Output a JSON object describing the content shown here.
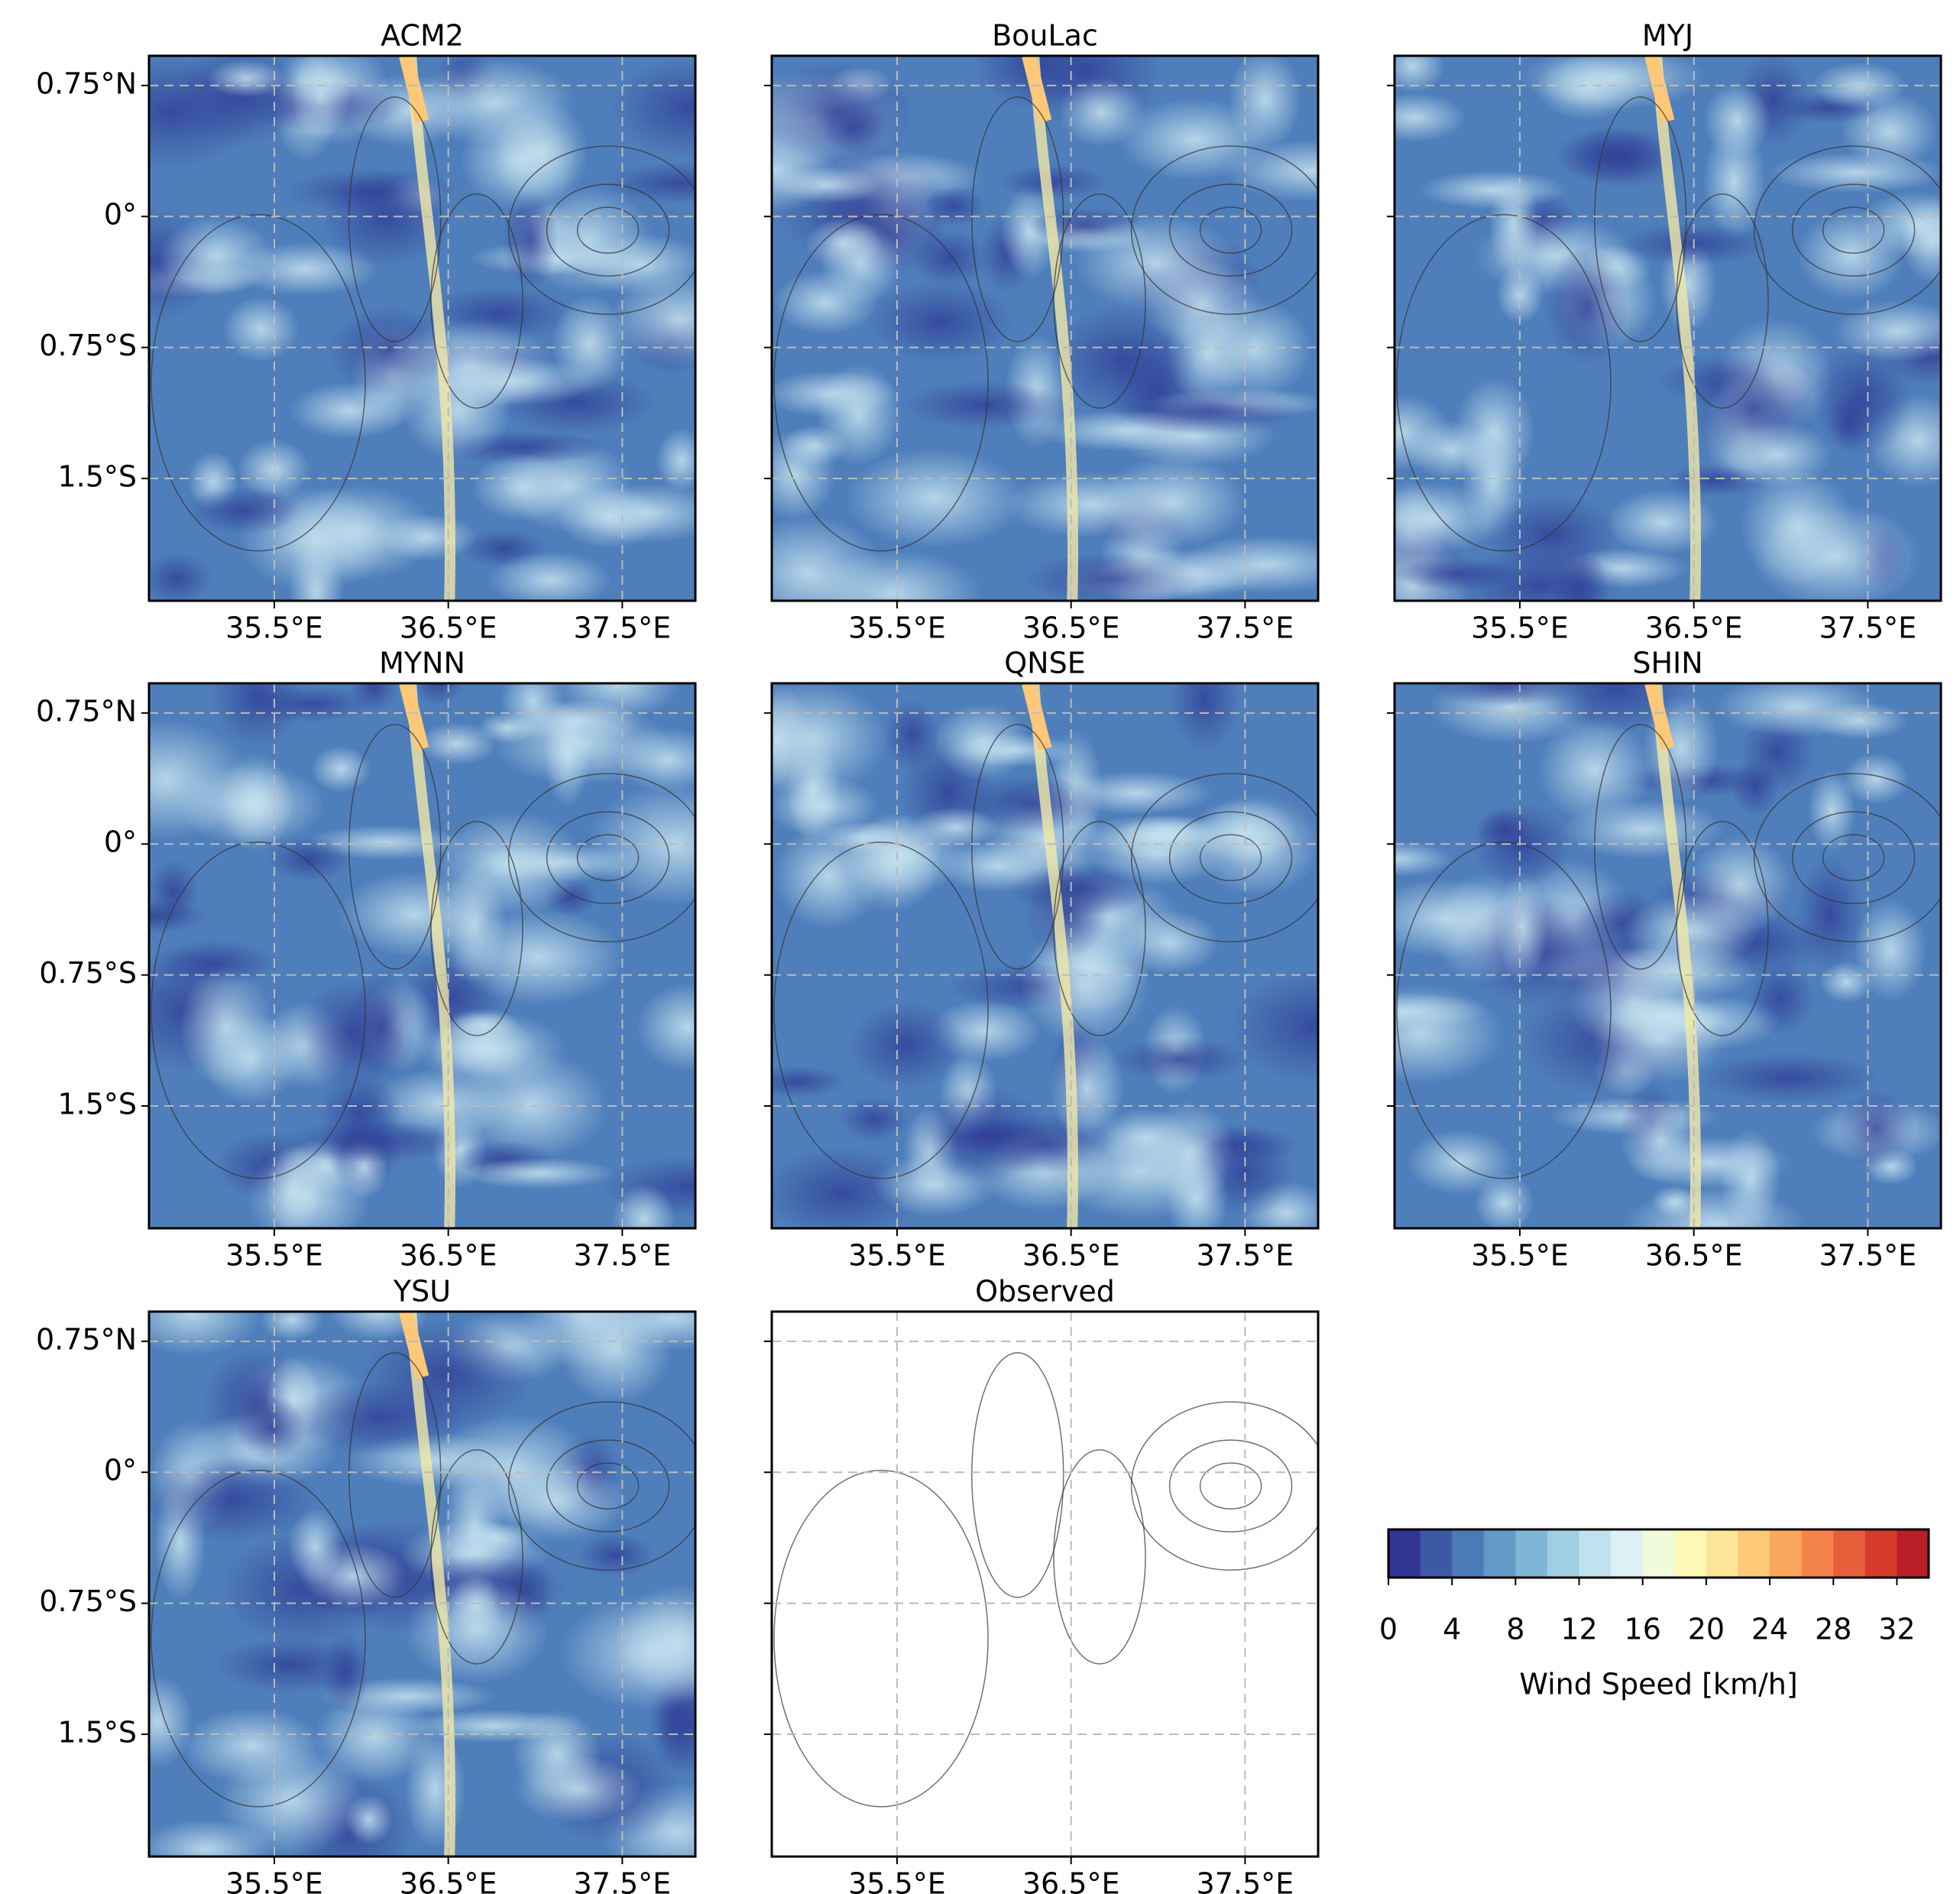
{
  "panels": [
    {
      "title": "ACM2"
    },
    {
      "title": "BouLac"
    },
    {
      "title": "MYJ"
    },
    {
      "title": "MYNN"
    },
    {
      "title": "QNSE"
    },
    {
      "title": "SHIN"
    },
    {
      "title": "YSU"
    },
    {
      "title": "Observed",
      "observed": true
    }
  ],
  "axes": {
    "xlim": [
      34.78,
      37.92
    ],
    "ylim": [
      -2.2,
      0.92
    ],
    "xticks": [
      {
        "value": 35.5,
        "label": "35.5°E"
      },
      {
        "value": 36.5,
        "label": "36.5°E"
      },
      {
        "value": 37.5,
        "label": "37.5°E"
      }
    ],
    "yticks": [
      {
        "value": 0.75,
        "label": "0.75°N"
      },
      {
        "value": 0,
        "label": "0°"
      },
      {
        "value": -0.75,
        "label": "0.75°S"
      },
      {
        "value": -1.5,
        "label": "1.5°S"
      }
    ]
  },
  "colorbar": {
    "label": "Wind Speed [km/h]",
    "lim": [
      0,
      34
    ],
    "ticks": [
      0,
      4,
      8,
      12,
      16,
      20,
      24,
      28,
      32
    ],
    "colors": [
      "#313695",
      "#3c59a6",
      "#4a7bb7",
      "#6399c6",
      "#7fb6d6",
      "#a0cfe3",
      "#c0e2ee",
      "#dcf0f5",
      "#f2fadc",
      "#fff8b4",
      "#fee597",
      "#fdc877",
      "#fba85e",
      "#f4834a",
      "#e75e3a",
      "#d63a2b",
      "#b81f27"
    ]
  }
}
